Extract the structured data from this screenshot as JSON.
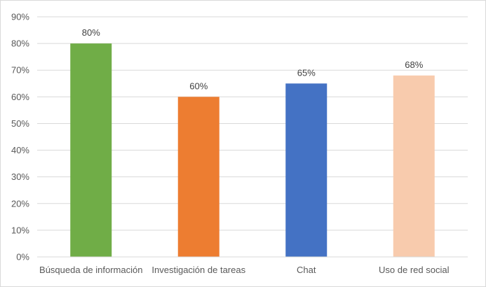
{
  "chart_data": {
    "type": "bar",
    "title": "",
    "xlabel": "",
    "ylabel": "",
    "categories": [
      "Búsqueda de información",
      "Investigación de tareas",
      "Chat",
      "Uso de red social"
    ],
    "values": [
      80,
      60,
      65,
      68
    ],
    "data_labels": [
      "80%",
      "60%",
      "65%",
      "68%"
    ],
    "bar_colors": [
      "#70ad47",
      "#ed7d31",
      "#4472c4",
      "#f8cbad"
    ],
    "ylim": [
      0,
      90
    ],
    "yticks": [
      0,
      10,
      20,
      30,
      40,
      50,
      60,
      70,
      80,
      90
    ],
    "ytick_labels": [
      "0%",
      "10%",
      "20%",
      "30%",
      "40%",
      "50%",
      "60%",
      "70%",
      "80%",
      "90%"
    ],
    "grid": true,
    "legend": "none"
  }
}
